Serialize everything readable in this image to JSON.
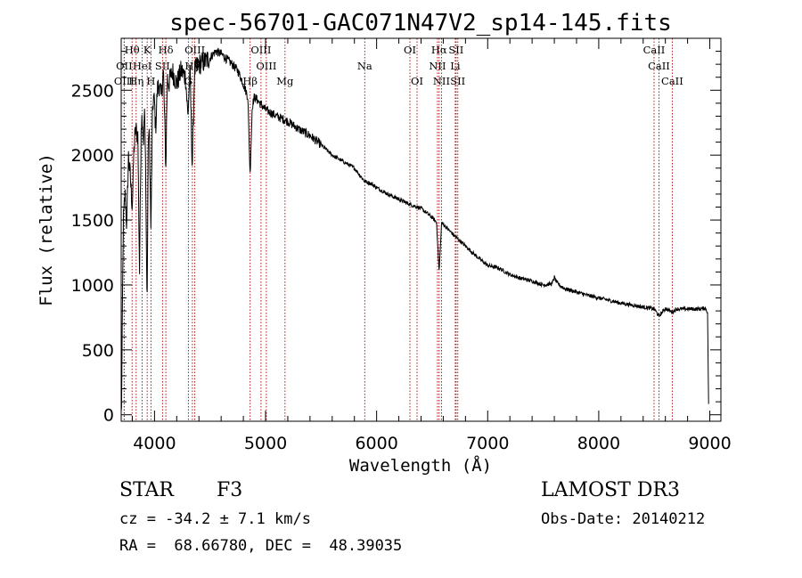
{
  "chart_data": {
    "type": "line",
    "title": "spec-56701-GAC071N47V2_sp14-145.fits",
    "xlabel": "Wavelength (Å)",
    "ylabel": "Flux (relative)",
    "xlim": [
      3700,
      9100
    ],
    "ylim": [
      -50,
      2900
    ],
    "xticks": [
      4000,
      5000,
      6000,
      7000,
      8000,
      9000
    ],
    "yticks": [
      0,
      500,
      1000,
      1500,
      2000,
      2500
    ],
    "series": [
      {
        "name": "spectrum",
        "anchors_x": [
          3700,
          3705,
          3712,
          3720,
          3735,
          3750,
          3765,
          3780,
          3800,
          3815,
          3830,
          3850,
          3865,
          3880,
          3890,
          3900,
          3910,
          3920,
          3933,
          3945,
          3955,
          3968,
          3980,
          3990,
          4000,
          4010,
          4025,
          4040,
          4060,
          4080,
          4102,
          4115,
          4130,
          4160,
          4200,
          4240,
          4280,
          4300,
          4320,
          4340,
          4360,
          4400,
          4450,
          4500,
          4550,
          4600,
          4650,
          4700,
          4750,
          4800,
          4840,
          4861,
          4880,
          4900,
          4950,
          5000,
          5100,
          5200,
          5300,
          5400,
          5500,
          5600,
          5700,
          5800,
          5890,
          5950,
          6000,
          6100,
          6200,
          6300,
          6400,
          6500,
          6540,
          6563,
          6585,
          6620,
          6700,
          6800,
          6900,
          7000,
          7100,
          7200,
          7300,
          7400,
          7500,
          7580,
          7600,
          7620,
          7660,
          7700,
          7800,
          7900,
          8000,
          8100,
          8200,
          8300,
          8400,
          8500,
          8542,
          8600,
          8662,
          8700,
          8800,
          8900,
          8960,
          8980,
          8990
        ],
        "anchors_y": [
          0,
          150,
          900,
          1500,
          1700,
          1450,
          2000,
          1850,
          1600,
          2050,
          2200,
          2150,
          1100,
          2250,
          2300,
          2100,
          2350,
          1900,
          800,
          2200,
          2100,
          1400,
          2250,
          2450,
          2400,
          2200,
          2500,
          2550,
          2450,
          2650,
          1900,
          2600,
          2550,
          2650,
          2550,
          2650,
          2600,
          2300,
          2650,
          1900,
          2650,
          2700,
          2720,
          2750,
          2800,
          2780,
          2740,
          2700,
          2650,
          2550,
          2450,
          1850,
          2380,
          2450,
          2400,
          2350,
          2300,
          2260,
          2200,
          2150,
          2080,
          2000,
          1950,
          1900,
          1800,
          1780,
          1750,
          1700,
          1660,
          1620,
          1590,
          1520,
          1480,
          1100,
          1480,
          1450,
          1380,
          1300,
          1220,
          1150,
          1130,
          1080,
          1050,
          1030,
          1000,
          1010,
          1060,
          1020,
          990,
          970,
          945,
          920,
          900,
          880,
          860,
          845,
          830,
          815,
          760,
          820,
          790,
          815,
          815,
          815,
          820,
          790,
          0
        ],
        "noise": 22
      }
    ],
    "spectral_lines": [
      {
        "label": "Hθ",
        "x": 3798,
        "row": 0
      },
      {
        "label": "K",
        "x": 3934,
        "row": 0
      },
      {
        "label": "Hδ",
        "x": 4102,
        "row": 0
      },
      {
        "label": "OIII",
        "x": 4363,
        "row": 0
      },
      {
        "label": "OIII",
        "x": 4959,
        "row": 0
      },
      {
        "label": "OI",
        "x": 6300,
        "row": 0
      },
      {
        "label": "Hα",
        "x": 6563,
        "row": 0
      },
      {
        "label": "SII",
        "x": 6716,
        "row": 0
      },
      {
        "label": "CaII",
        "x": 8498,
        "row": 0
      },
      {
        "label": "OII",
        "x": 3727,
        "row": 1
      },
      {
        "label": "HeI",
        "x": 3889,
        "row": 1
      },
      {
        "label": "SII",
        "x": 4072,
        "row": 1
      },
      {
        "label": "Hγ",
        "x": 4341,
        "row": 1
      },
      {
        "label": "OIII",
        "x": 5007,
        "row": 1
      },
      {
        "label": "Na",
        "x": 5893,
        "row": 1
      },
      {
        "label": "NII",
        "x": 6548,
        "row": 1
      },
      {
        "label": "Li",
        "x": 6708,
        "row": 1
      },
      {
        "label": "CaII",
        "x": 8542,
        "row": 1
      },
      {
        "label": "OIII",
        "x": 3727,
        "row": 2
      },
      {
        "label": "Hη",
        "x": 3835,
        "row": 2
      },
      {
        "label": "H",
        "x": 3968,
        "row": 2
      },
      {
        "label": "G",
        "x": 4305,
        "row": 2
      },
      {
        "label": "Hβ",
        "x": 4861,
        "row": 2
      },
      {
        "label": "Mg",
        "x": 5175,
        "row": 2
      },
      {
        "label": "OI",
        "x": 6364,
        "row": 2
      },
      {
        "label": "NII",
        "x": 6584,
        "row": 2
      },
      {
        "label": "SII",
        "x": 6731,
        "row": 2
      },
      {
        "label": "CaII",
        "x": 8662,
        "row": 2
      }
    ],
    "line_color": "#000000",
    "marker_color": "#aa0000"
  },
  "footer": {
    "class_label": "STAR",
    "subclass": "F3",
    "survey": "LAMOST DR3",
    "redshift": "cz = -34.2 ± 7.1 km/s",
    "obs_date": "Obs-Date: 20140212",
    "coords": "RA =  68.66780, DEC =  48.39035"
  }
}
